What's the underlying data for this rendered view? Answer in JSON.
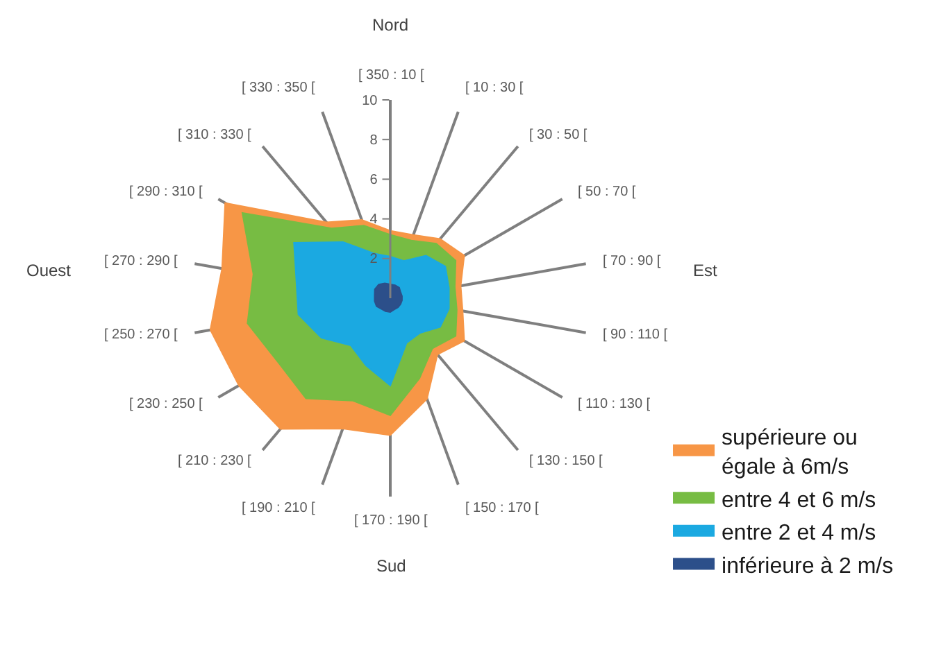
{
  "chart_data": {
    "type": "radar",
    "categories": [
      "[ 350 : 10 [",
      "[ 10 : 30 [",
      "[ 30 : 50 [",
      "[ 50 : 70 [",
      "[ 70 : 90 [",
      "[ 90 : 110 [",
      "[ 110 : 130 [",
      "[ 130 : 150 [",
      "[ 150 : 170 [",
      "[ 170 : 190 [",
      "[ 190 : 210 [",
      "[ 210 : 230 [",
      "[ 230 : 250 [",
      "[ 250 : 270 [",
      "[ 270 : 290 [",
      "[ 290 : 310 [",
      "[ 310 : 330 [",
      "[ 330 : 350 ["
    ],
    "series": [
      {
        "name": "supérieure ou égale à 6m/s",
        "color": "#f79646",
        "values": [
          3.4,
          3.4,
          3.9,
          4.3,
          3.6,
          3.7,
          4.3,
          3.7,
          5.4,
          6.9,
          7.0,
          8.6,
          8.8,
          9.2,
          8.6,
          9.6,
          5.0,
          4.2
        ]
      },
      {
        "name": "entre 4 et 6 m/s",
        "color": "#77bc43",
        "values": [
          3.2,
          3.1,
          3.6,
          3.8,
          3.3,
          3.4,
          3.8,
          3.3,
          4.3,
          5.9,
          5.5,
          6.6,
          6.5,
          7.3,
          7.0,
          8.6,
          4.6,
          3.9
        ]
      },
      {
        "name": "entre 2 et 4 m/s",
        "color": "#1ba9e1",
        "values": [
          2.1,
          2.0,
          2.8,
          3.2,
          3.0,
          3.0,
          2.9,
          2.3,
          2.4,
          4.4,
          3.6,
          3.1,
          4.0,
          4.7,
          4.8,
          5.6,
          3.7,
          2.4
        ]
      },
      {
        "name": "inférieure à 2 m/s",
        "color": "#2c4f8a",
        "values": [
          0.7,
          0.7,
          0.7,
          0.6,
          0.6,
          0.6,
          0.6,
          0.6,
          0.6,
          0.7,
          0.7,
          0.7,
          0.8,
          0.8,
          0.8,
          0.9,
          0.9,
          0.8
        ]
      }
    ],
    "ylim": [
      0,
      10
    ],
    "yticks": [
      2,
      4,
      6,
      8,
      10
    ],
    "grid": "x",
    "legend": "bottom right",
    "marker": "none",
    "annotations": [
      "Nord",
      "Est",
      "Sud",
      "Ouest"
    ]
  }
}
